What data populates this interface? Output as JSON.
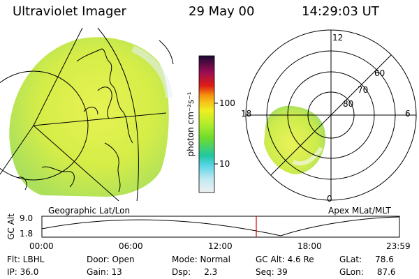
{
  "header": {
    "instrument": "Ultraviolet Imager",
    "date": "29 May 00",
    "time": "14:29:03 UT"
  },
  "left_panel": {
    "caption": "Geographic Lat/Lon"
  },
  "right_panel": {
    "caption": "Apex MLat/MLT",
    "mlt_labels": [
      "12",
      "18",
      "6",
      "0"
    ],
    "lat_labels": [
      "60",
      "70",
      "80"
    ]
  },
  "colorbar": {
    "unit_label": "photon cm⁻²s⁻¹",
    "ticks": [
      "100",
      "10"
    ],
    "scale": "log"
  },
  "altitude_strip": {
    "ylabel": "GC Alt",
    "y_ticks": [
      "9.0",
      "1.8"
    ],
    "x_ticks": [
      "00:00",
      "06:00",
      "12:00",
      "18:00",
      "23:59"
    ],
    "current_time_marker": "14:29:03"
  },
  "info": {
    "flt": "Flt: LBHL",
    "ip": "IP: 36.0",
    "door": "Door: Open",
    "gain": "Gain: 13",
    "mode": "Mode: Normal",
    "dsp": "Dsp:     2.3",
    "gc_alt": "GC Alt: 4.6 Re",
    "seq": "Seq: 39",
    "glat": "GLat:     78.6",
    "glon": "GLon:     87.6"
  },
  "colors": {
    "colorbar_stops": [
      "#f0f0f0",
      "#bfe8f2",
      "#57d4e6",
      "#22c7a0",
      "#6fdc2c",
      "#b2ec2c",
      "#eef020",
      "#f7c21a",
      "#f6940e",
      "#e01d15",
      "#9b0c54",
      "#1a0a33"
    ],
    "time_marker": "#d00000",
    "aurora_fill": "#d8ef42"
  }
}
